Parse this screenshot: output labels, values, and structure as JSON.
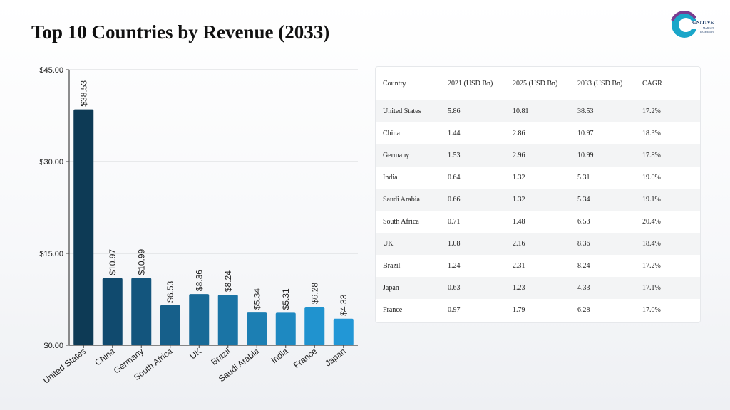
{
  "title": "Top 10 Countries by Revenue (2033)",
  "logo": {
    "text": "GNITIVE",
    "subtext_1": "MARKET",
    "subtext_2": "RESEARCH"
  },
  "colors": {
    "bar_gradient": [
      "#0d3a55",
      "#104a6e",
      "#13557d",
      "#165f8a",
      "#186a97",
      "#1a74a5",
      "#1c7fb3",
      "#1e89c1",
      "#2093cf",
      "#2297d6"
    ]
  },
  "chart_data": {
    "type": "bar",
    "categories": [
      "United States",
      "China",
      "Germany",
      "South Africa",
      "UK",
      "Brazil",
      "Saudi Arabia",
      "India",
      "France",
      "Japan"
    ],
    "values": [
      38.53,
      10.97,
      10.99,
      6.53,
      8.36,
      8.24,
      5.34,
      5.31,
      6.28,
      4.33
    ],
    "value_labels": [
      "$38.53",
      "$10.97",
      "$10.99",
      "$6.53",
      "$8.36",
      "$8.24",
      "$5.34",
      "$5.31",
      "$6.28",
      "$4.33"
    ],
    "y_ticks": [
      0,
      15,
      30,
      45
    ],
    "y_tick_labels": [
      "$0.00",
      "$15.00",
      "$30.00",
      "$45.00"
    ],
    "ylim": [
      0,
      45
    ],
    "grid": true,
    "xlabel": "",
    "ylabel": ""
  },
  "table": {
    "headers": [
      "Country",
      "2021 (USD Bn)",
      "2025 (USD Bn)",
      "2033 (USD Bn)",
      "CAGR"
    ],
    "rows": [
      [
        "United States",
        "5.86",
        "10.81",
        "38.53",
        "17.2%"
      ],
      [
        "China",
        "1.44",
        "2.86",
        "10.97",
        "18.3%"
      ],
      [
        "Germany",
        "1.53",
        "2.96",
        "10.99",
        "17.8%"
      ],
      [
        "India",
        "0.64",
        "1.32",
        "5.31",
        "19.0%"
      ],
      [
        "Saudi Arabia",
        "0.66",
        "1.32",
        "5.34",
        "19.1%"
      ],
      [
        "South Africa",
        "0.71",
        "1.48",
        "6.53",
        "20.4%"
      ],
      [
        "UK",
        "1.08",
        "2.16",
        "8.36",
        "18.4%"
      ],
      [
        "Brazil",
        "1.24",
        "2.31",
        "8.24",
        "17.2%"
      ],
      [
        "Japan",
        "0.63",
        "1.23",
        "4.33",
        "17.1%"
      ],
      [
        "France",
        "0.97",
        "1.79",
        "6.28",
        "17.0%"
      ]
    ]
  }
}
